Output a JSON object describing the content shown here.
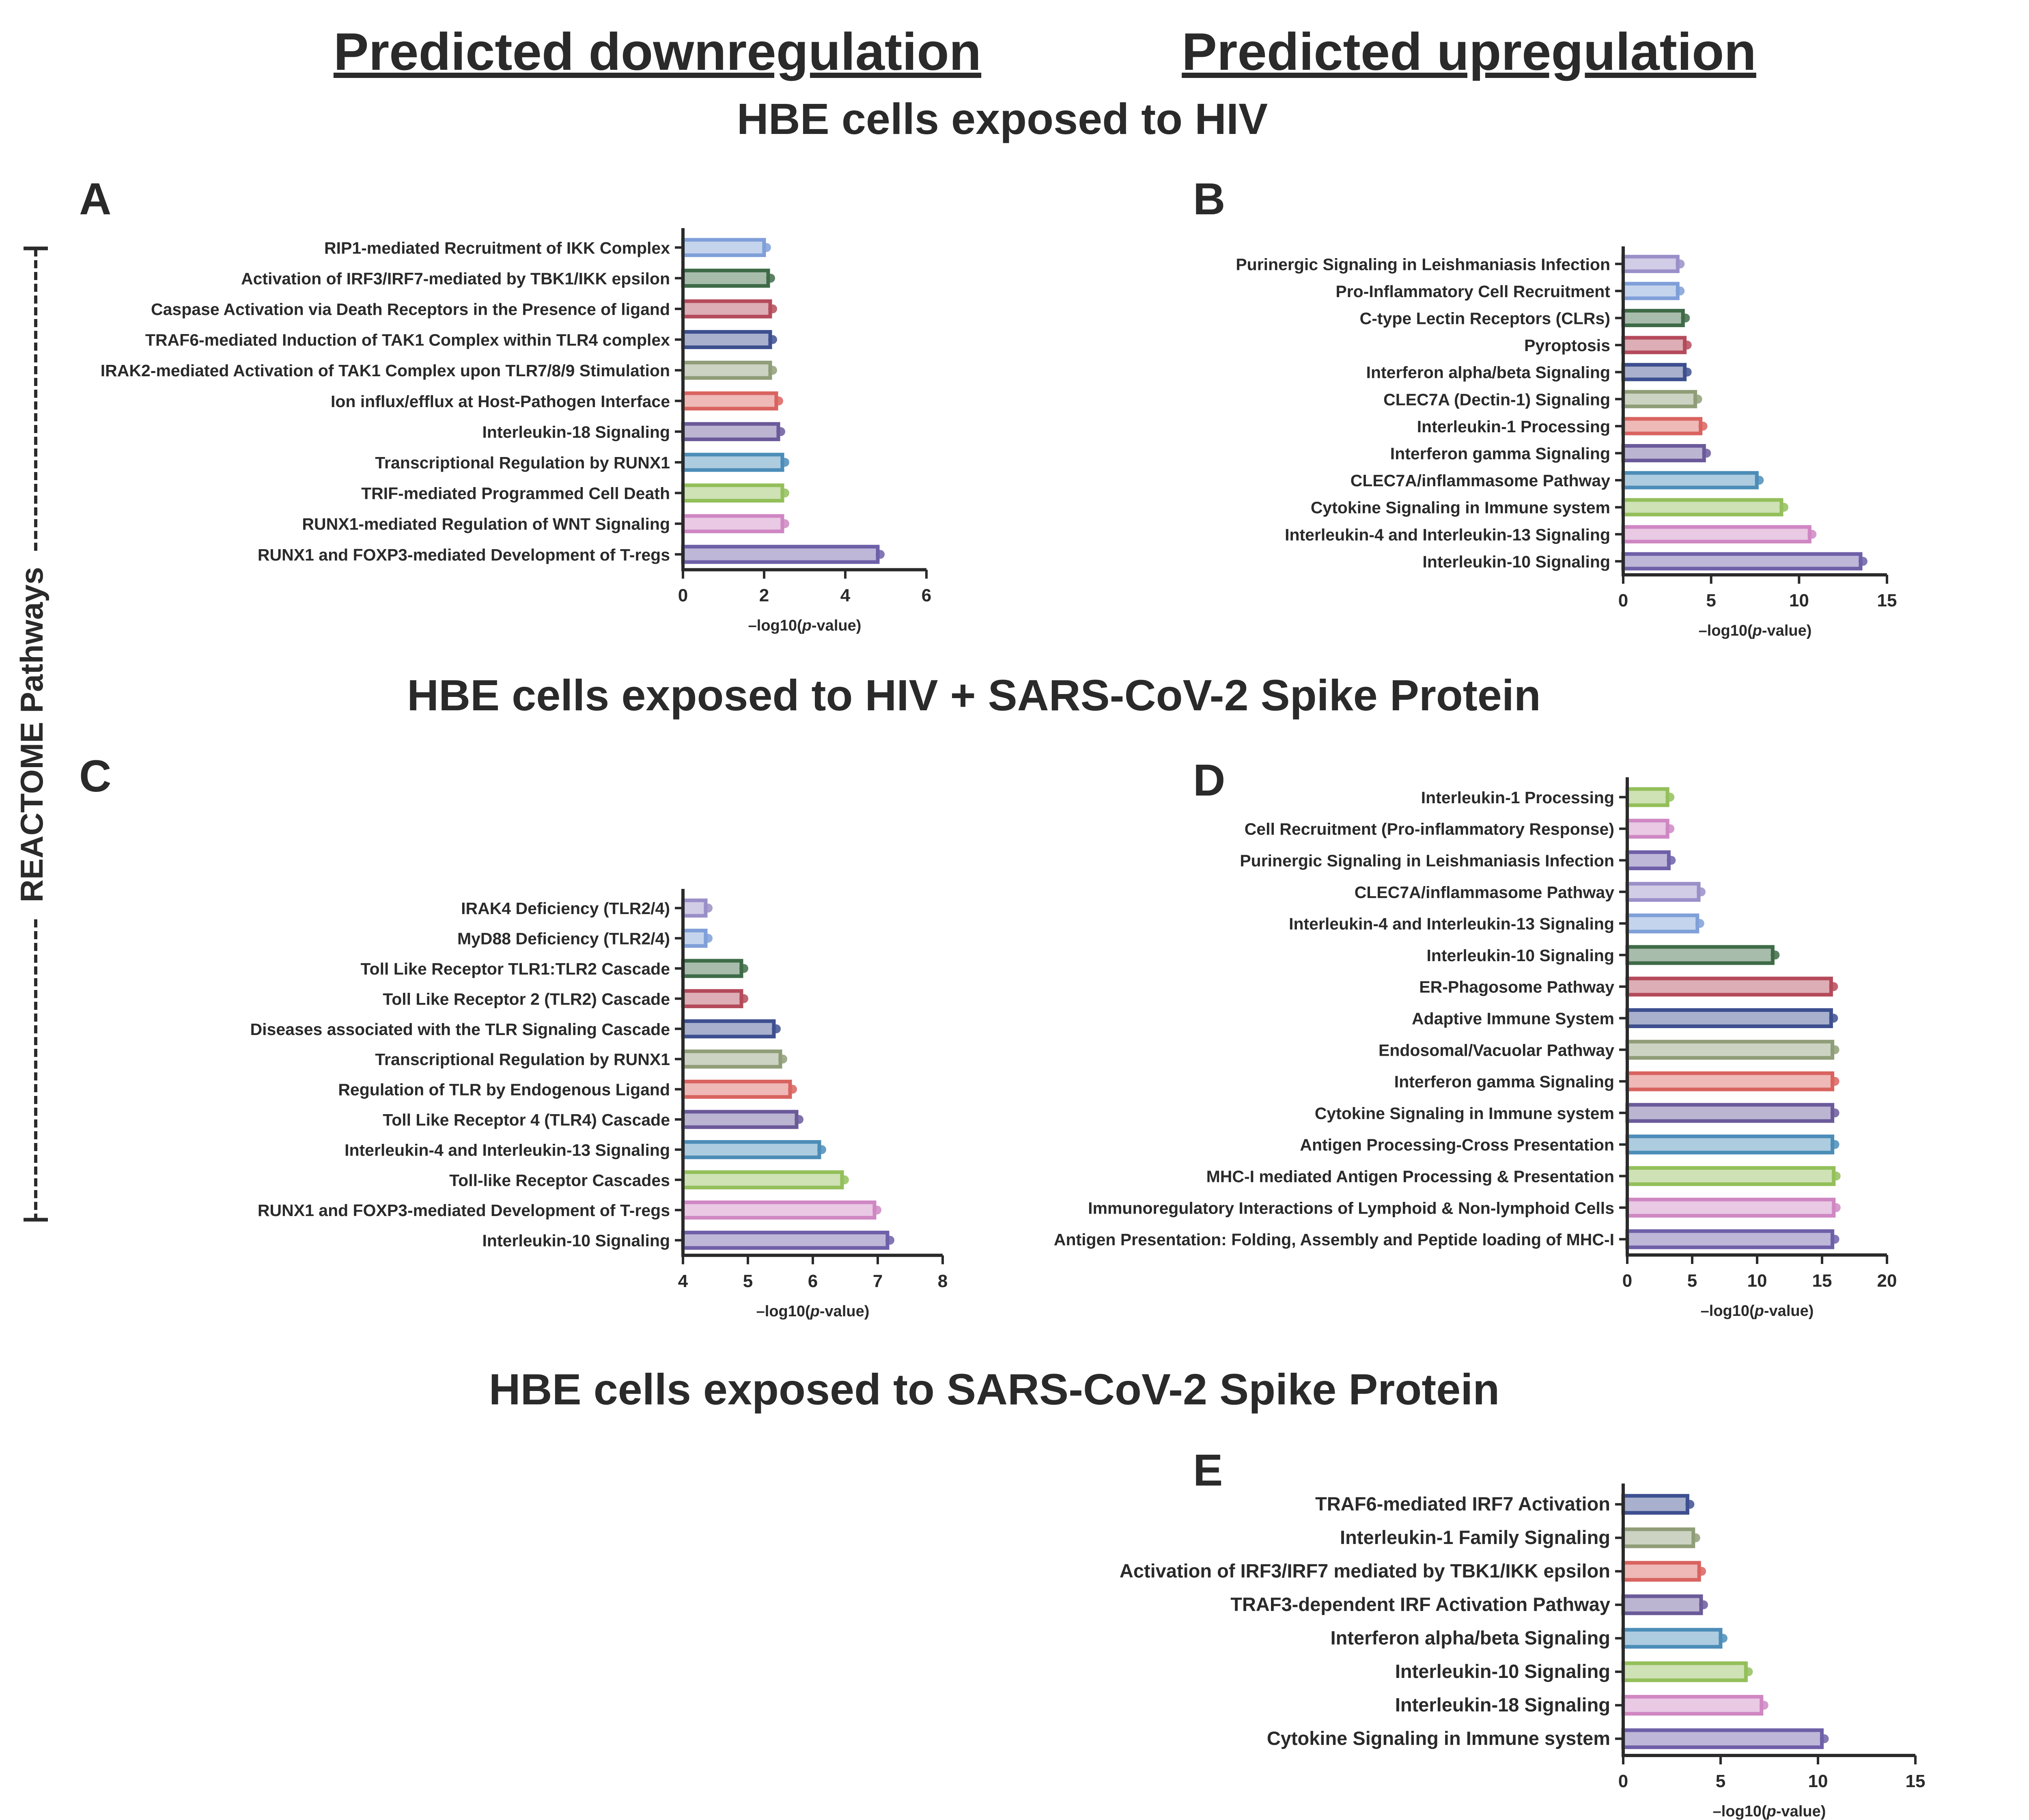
{
  "headers": {
    "down": "Predicted downregulation",
    "up": "Predicted upregulation"
  },
  "sections": {
    "hiv": "HBE cells exposed to HIV",
    "hiv_spike": "HBE cells exposed to HIV + SARS-CoV-2 Spike Protein",
    "spike": "HBE cells exposed to SARS-CoV-2 Spike Protein"
  },
  "y_axis_label": "REACTOME Pathways",
  "x_label_prefix": "–log10(",
  "x_label_italic": "p",
  "x_label_suffix": "-value)",
  "palette": [
    "#6f5fa8",
    "#cf87c3",
    "#93bf5a",
    "#4c8db8",
    "#6b5a9a",
    "#d9635f",
    "#8f9d78",
    "#3d4f8f",
    "#b44a5b",
    "#3e6b47",
    "#7f9fd8",
    "#9a8fc8"
  ],
  "chart_data": [
    {
      "panel": "A",
      "type": "bar",
      "orientation": "horizontal",
      "title": "Predicted downregulation — HBE cells exposed to HIV",
      "xlabel": "–log10(p-value)",
      "xlim": [
        0,
        6
      ],
      "xticks": [
        0,
        2,
        4,
        6
      ],
      "categories": [
        "RUNX1 and FOXP3-mediated Development of T-regs",
        "RUNX1-mediated Regulation of WNT Signaling",
        "TRIF-mediated Programmed Cell Death",
        "Transcriptional Regulation by RUNX1",
        "Interleukin-18 Signaling",
        "Ion influx/efflux at Host-Pathogen Interface",
        "IRAK2-mediated Activation of TAK1 Complex upon TLR7/8/9 Stimulation",
        "TRAF6-mediated Induction of TAK1 Complex within TLR4 complex",
        "Caspase Activation via Death Receptors in the Presence of ligand",
        "Activation of IRF3/IRF7-mediated by TBK1/IKK epsilon",
        "RIP1-mediated Recruitment of IKK Complex"
      ],
      "values": [
        4.8,
        2.45,
        2.45,
        2.45,
        2.35,
        2.3,
        2.15,
        2.15,
        2.15,
        2.1,
        2.0
      ]
    },
    {
      "panel": "B",
      "type": "bar",
      "orientation": "horizontal",
      "title": "Predicted upregulation — HBE cells exposed to HIV",
      "xlabel": "–log10(p-value)",
      "xlim": [
        0,
        15
      ],
      "xticks": [
        0,
        5,
        10,
        15
      ],
      "categories": [
        "Interleukin-10 Signaling",
        "Interleukin-4 and Interleukin-13 Signaling",
        "Cytokine Signaling in Immune system",
        "CLEC7A/inflammasome Pathway",
        "Interferon gamma Signaling",
        "Interleukin-1 Processing",
        "CLEC7A (Dectin-1) Signaling",
        "Interferon alpha/beta Signaling",
        "Pyroptosis",
        "C-type Lectin Receptors (CLRs)",
        "Pro-Inflammatory Cell Recruitment",
        "Purinergic Signaling in Leishmaniasis Infection"
      ],
      "values": [
        13.5,
        10.6,
        9.0,
        7.6,
        4.6,
        4.4,
        4.1,
        3.5,
        3.5,
        3.4,
        3.1,
        3.1
      ]
    },
    {
      "panel": "C",
      "type": "bar",
      "orientation": "horizontal",
      "title": "Predicted downregulation — HBE cells exposed to HIV + SARS-CoV-2 Spike Protein",
      "xlabel": "–log10(p-value)",
      "xlim": [
        4,
        8
      ],
      "xticks": [
        4,
        5,
        6,
        7,
        8
      ],
      "categories": [
        "Interleukin-10 Signaling",
        "RUNX1 and FOXP3-mediated Development of T-regs",
        "Toll-like Receptor Cascades",
        "Interleukin-4 and Interleukin-13 Signaling",
        "Toll Like Receptor 4 (TLR4) Cascade",
        "Regulation of TLR by Endogenous Ligand",
        "Transcriptional Regulation by RUNX1",
        "Diseases associated with the TLR Signaling Cascade",
        "Toll Like Receptor 2 (TLR2) Cascade",
        "Toll Like Receptor TLR1:TLR2 Cascade",
        "MyD88 Deficiency (TLR2/4)",
        "IRAK4 Deficiency (TLR2/4)"
      ],
      "values": [
        7.15,
        6.95,
        6.45,
        6.1,
        5.75,
        5.65,
        5.5,
        5.4,
        4.9,
        4.9,
        4.35,
        4.35
      ]
    },
    {
      "panel": "D",
      "type": "bar",
      "orientation": "horizontal",
      "title": "Predicted upregulation — HBE cells exposed to HIV + SARS-CoV-2 Spike Protein",
      "xlabel": "–log10(p-value)",
      "xlim": [
        0,
        20
      ],
      "xticks": [
        0,
        5,
        10,
        15,
        20
      ],
      "categories": [
        "Antigen Presentation: Folding, Assembly and Peptide loading of MHC-I",
        "Immunoregulatory Interactions of Lymphoid & Non-lymphoid Cells",
        "MHC-I mediated Antigen Processing & Presentation",
        "Antigen Processing-Cross Presentation",
        "Cytokine Signaling in Immune system",
        "Interferon gamma Signaling",
        "Endosomal/Vacuolar Pathway",
        "Adaptive Immune System",
        "ER-Phagosome Pathway",
        "Interleukin-10 Signaling",
        "Interleukin-4 and Interleukin-13 Signaling",
        "CLEC7A/inflammasome Pathway",
        "Purinergic Signaling in Leishmaniasis Infection",
        "Cell Recruitment (Pro-inflammatory Response)",
        "Interleukin-1 Processing"
      ],
      "values": [
        15.8,
        15.9,
        15.9,
        15.8,
        15.8,
        15.8,
        15.8,
        15.7,
        15.7,
        11.2,
        5.4,
        5.5,
        3.2,
        3.1,
        3.1
      ]
    },
    {
      "panel": "E",
      "type": "bar",
      "orientation": "horizontal",
      "title": "Predicted upregulation — HBE cells exposed to SARS-CoV-2 Spike Protein",
      "xlabel": "–log10(p-value)",
      "xlim": [
        0,
        15
      ],
      "xticks": [
        0,
        5,
        10,
        15
      ],
      "categories": [
        "Cytokine Signaling in Immune system",
        "Interleukin-18 Signaling",
        "Interleukin-10 Signaling",
        "Interferon alpha/beta Signaling",
        "TRAF3-dependent IRF Activation Pathway",
        "Activation of IRF3/IRF7 mediated by TBK1/IKK epsilon",
        "Interleukin-1 Family Signaling",
        "TRAF6-mediated IRF7 Activation"
      ],
      "values": [
        10.2,
        7.1,
        6.3,
        5.0,
        4.0,
        3.9,
        3.6,
        3.3
      ]
    }
  ]
}
